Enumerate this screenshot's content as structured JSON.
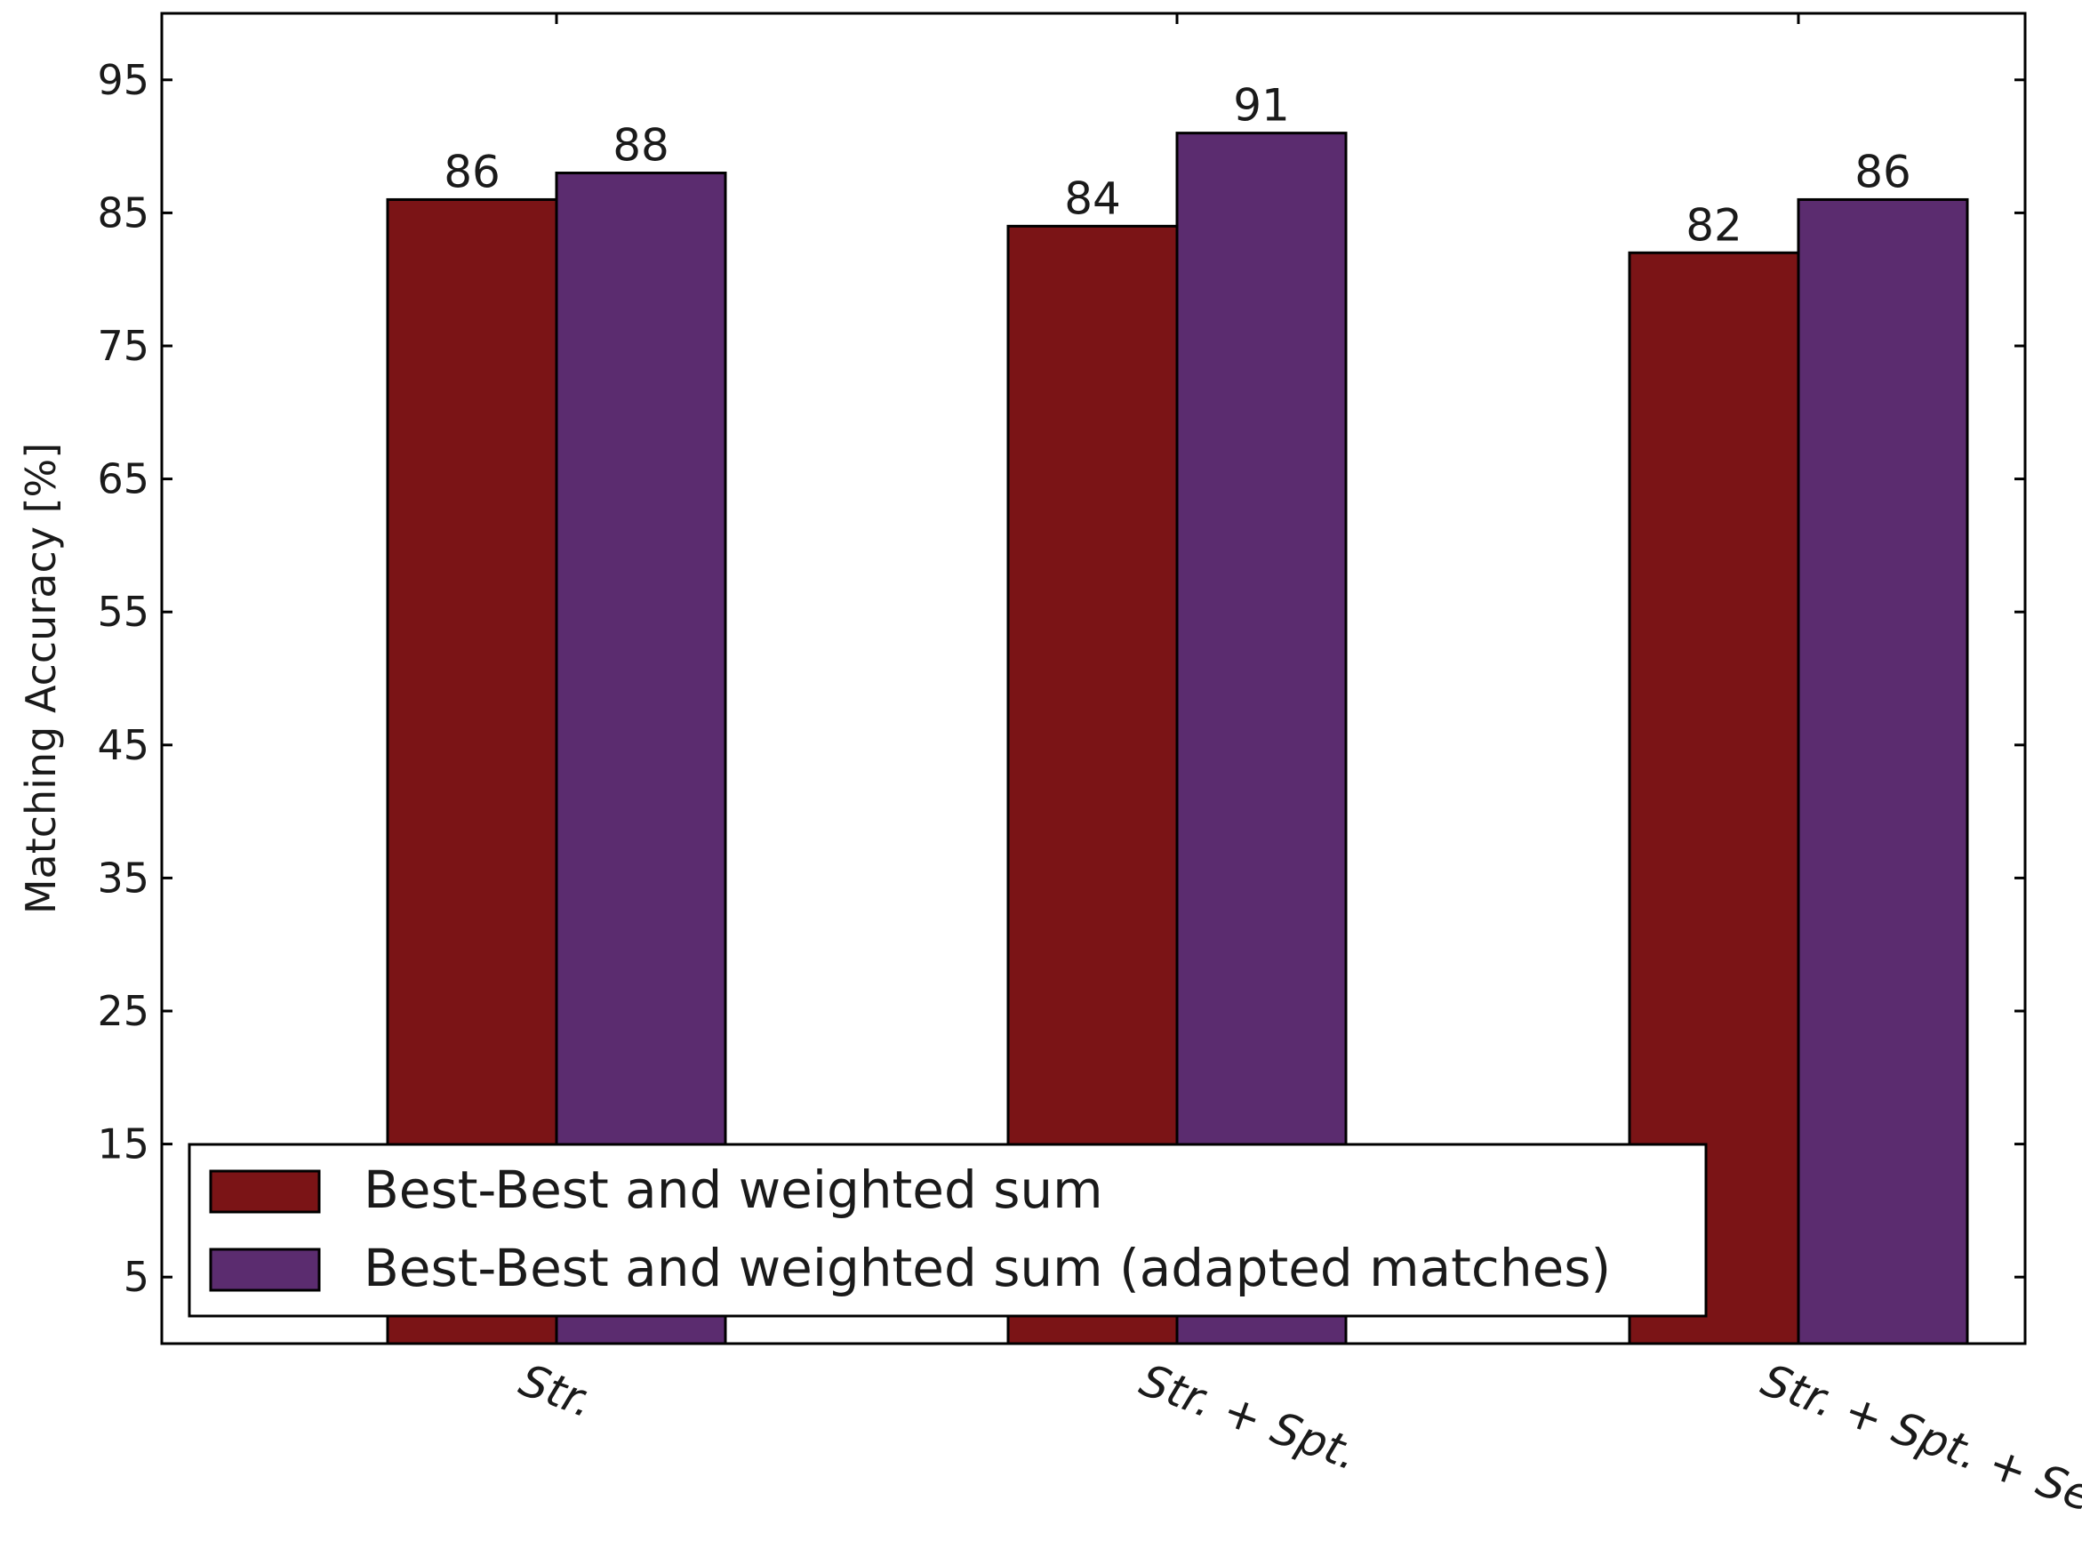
{
  "chart_data": {
    "type": "bar",
    "title": "",
    "xlabel": "",
    "ylabel": "Matching Accuracy [%]",
    "categories": [
      "Str.",
      "Str. + Spt.",
      "Str. + Spt. + Sem."
    ],
    "series": [
      {
        "name": "Best-Best and weighted sum",
        "values": [
          86,
          84,
          82
        ],
        "color": "#7b1416"
      },
      {
        "name": "Best-Best and weighted sum (adapted matches)",
        "values": [
          88,
          91,
          86
        ],
        "color": "#5b2c6f"
      }
    ],
    "ylim": [
      0,
      100
    ],
    "yticks": [
      5,
      15,
      25,
      35,
      45,
      55,
      65,
      75,
      85,
      95
    ],
    "grid": false,
    "legend_position": "lower-left"
  }
}
